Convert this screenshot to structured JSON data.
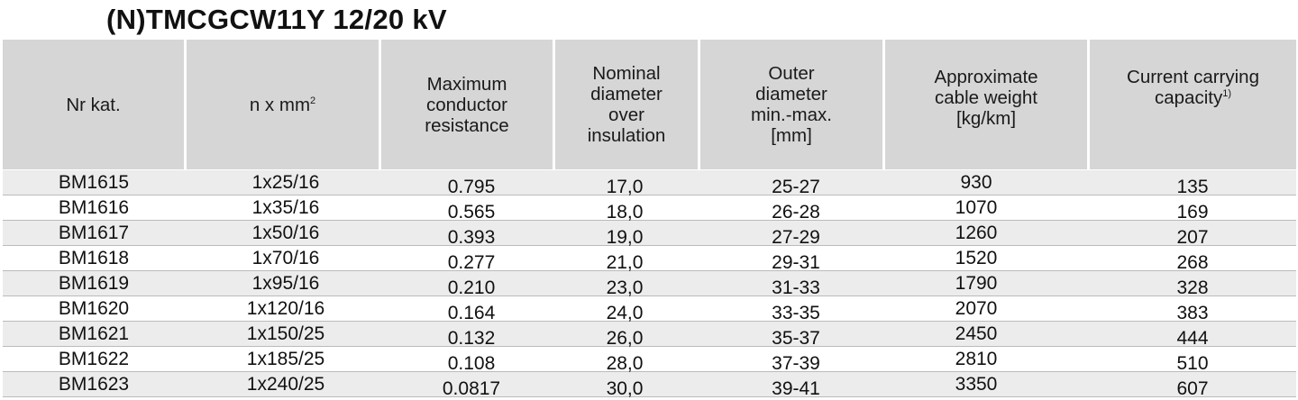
{
  "title": "(N)TMCGCW11Y 12/20 kV",
  "headers": {
    "nr_kat": "Nr kat.",
    "nxmm": "n x mm",
    "nxmm_sup": "2",
    "max_res": "Maximum\nconductor\nresistance",
    "nom_diam": "Nominal\ndiameter\nover\ninsulation",
    "outer_diam": "Outer\ndiameter\nmin.-max.\n[mm]",
    "weight": "Approximate\ncable weight\n[kg/km]",
    "current": "Current carrying\ncapacity",
    "current_sup": "1)"
  },
  "rows": [
    {
      "nr": "BM1615",
      "size": "1x25/16",
      "res": "0.795",
      "nom": "17,0",
      "outer": "25-27",
      "weight": "930",
      "current": "135"
    },
    {
      "nr": "BM1616",
      "size": "1x35/16",
      "res": "0.565",
      "nom": "18,0",
      "outer": "26-28",
      "weight": "1070",
      "current": "169"
    },
    {
      "nr": "BM1617",
      "size": "1x50/16",
      "res": "0.393",
      "nom": "19,0",
      "outer": "27-29",
      "weight": "1260",
      "current": "207"
    },
    {
      "nr": "BM1618",
      "size": "1x70/16",
      "res": "0.277",
      "nom": "21,0",
      "outer": "29-31",
      "weight": "1520",
      "current": "268"
    },
    {
      "nr": "BM1619",
      "size": "1x95/16",
      "res": "0.210",
      "nom": "23,0",
      "outer": "31-33",
      "weight": "1790",
      "current": "328"
    },
    {
      "nr": "BM1620",
      "size": "1x120/16",
      "res": "0.164",
      "nom": "24,0",
      "outer": "33-35",
      "weight": "2070",
      "current": "383"
    },
    {
      "nr": "BM1621",
      "size": "1x150/25",
      "res": "0.132",
      "nom": "26,0",
      "outer": "35-37",
      "weight": "2450",
      "current": "444"
    },
    {
      "nr": "BM1622",
      "size": "1x185/25",
      "res": "0.108",
      "nom": "28,0",
      "outer": "37-39",
      "weight": "2810",
      "current": "510"
    },
    {
      "nr": "BM1623",
      "size": "1x240/25",
      "res": "0.0817",
      "nom": "30,0",
      "outer": "39-41",
      "weight": "3350",
      "current": "607"
    }
  ]
}
